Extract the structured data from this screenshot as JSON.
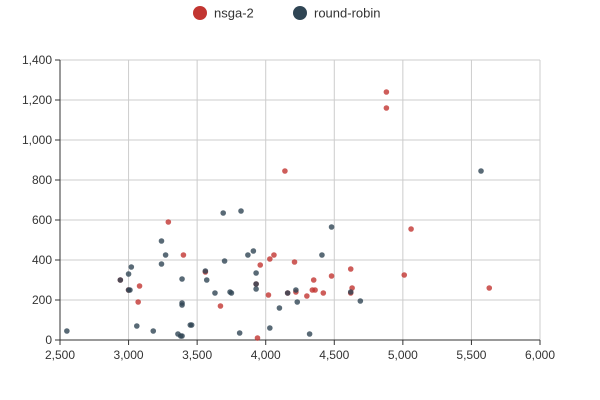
{
  "chart_data": {
    "type": "scatter",
    "title": "",
    "xlabel": "",
    "ylabel": "",
    "xlim": [
      2500,
      6000
    ],
    "ylim": [
      0,
      1400
    ],
    "x_ticks": [
      2500,
      3000,
      3500,
      4000,
      4500,
      5000,
      5500,
      6000
    ],
    "y_ticks": [
      0,
      200,
      400,
      600,
      800,
      1000,
      1200,
      1400
    ],
    "x_tick_labels": [
      "2,500",
      "3,000",
      "3,500",
      "4,000",
      "4,500",
      "5,000",
      "5,500",
      "6,000"
    ],
    "y_tick_labels": [
      "0",
      "200",
      "400",
      "600",
      "800",
      "1,000",
      "1,200",
      "1,400"
    ],
    "grid": true,
    "legend_position": "top-center",
    "series": [
      {
        "name": "nsga-2",
        "color": "#c23531",
        "points": [
          [
            2940,
            300
          ],
          [
            3000,
            250
          ],
          [
            3070,
            190
          ],
          [
            3080,
            270
          ],
          [
            3290,
            590
          ],
          [
            3400,
            425
          ],
          [
            3560,
            340
          ],
          [
            3670,
            170
          ],
          [
            3930,
            280
          ],
          [
            3940,
            10
          ],
          [
            3960,
            375
          ],
          [
            4020,
            225
          ],
          [
            4030,
            405
          ],
          [
            4060,
            425
          ],
          [
            4140,
            845
          ],
          [
            4160,
            235
          ],
          [
            4210,
            390
          ],
          [
            4220,
            240
          ],
          [
            4300,
            220
          ],
          [
            4340,
            250
          ],
          [
            4350,
            300
          ],
          [
            4360,
            250
          ],
          [
            4420,
            235
          ],
          [
            4480,
            320
          ],
          [
            4620,
            355
          ],
          [
            4620,
            235
          ],
          [
            4630,
            260
          ],
          [
            4880,
            1240
          ],
          [
            4880,
            1160
          ],
          [
            5010,
            325
          ],
          [
            5060,
            555
          ],
          [
            5630,
            260
          ]
        ]
      },
      {
        "name": "round-robin",
        "color": "#2f4554",
        "points": [
          [
            2550,
            45
          ],
          [
            2940,
            300
          ],
          [
            3000,
            330
          ],
          [
            3000,
            250
          ],
          [
            3010,
            250
          ],
          [
            3020,
            365
          ],
          [
            3060,
            70
          ],
          [
            3180,
            45
          ],
          [
            3240,
            380
          ],
          [
            3240,
            495
          ],
          [
            3270,
            425
          ],
          [
            3360,
            30
          ],
          [
            3380,
            20
          ],
          [
            3390,
            20
          ],
          [
            3390,
            305
          ],
          [
            3390,
            175
          ],
          [
            3390,
            185
          ],
          [
            3450,
            75
          ],
          [
            3460,
            75
          ],
          [
            3560,
            345
          ],
          [
            3570,
            300
          ],
          [
            3630,
            235
          ],
          [
            3690,
            635
          ],
          [
            3700,
            395
          ],
          [
            3740,
            240
          ],
          [
            3750,
            235
          ],
          [
            3810,
            35
          ],
          [
            3820,
            645
          ],
          [
            3870,
            425
          ],
          [
            3910,
            445
          ],
          [
            3930,
            280
          ],
          [
            3930,
            255
          ],
          [
            3930,
            335
          ],
          [
            4030,
            60
          ],
          [
            4100,
            160
          ],
          [
            4160,
            235
          ],
          [
            4220,
            250
          ],
          [
            4230,
            190
          ],
          [
            4320,
            30
          ],
          [
            4410,
            425
          ],
          [
            4480,
            565
          ],
          [
            4620,
            240
          ],
          [
            4690,
            195
          ],
          [
            5570,
            845
          ]
        ]
      }
    ]
  }
}
